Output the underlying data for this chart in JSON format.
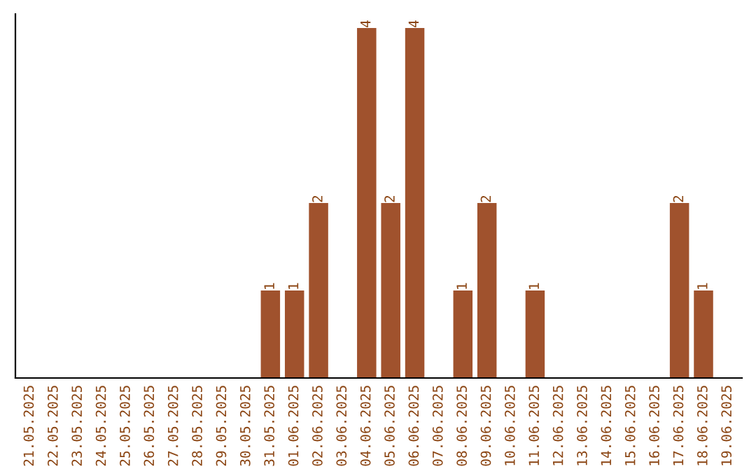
{
  "chart_data": {
    "type": "bar",
    "categories": [
      "21.05.2025",
      "22.05.2025",
      "23.05.2025",
      "24.05.2025",
      "25.05.2025",
      "26.05.2025",
      "27.05.2025",
      "28.05.2025",
      "29.05.2025",
      "30.05.2025",
      "31.05.2025",
      "01.06.2025",
      "02.06.2025",
      "03.06.2025",
      "04.06.2025",
      "05.06.2025",
      "06.06.2025",
      "07.06.2025",
      "08.06.2025",
      "09.06.2025",
      "10.06.2025",
      "11.06.2025",
      "12.06.2025",
      "13.06.2025",
      "14.06.2025",
      "15.06.2025",
      "16.06.2025",
      "17.06.2025",
      "18.06.2025",
      "19.06.2025"
    ],
    "values": [
      0,
      0,
      0,
      0,
      0,
      0,
      0,
      0,
      0,
      0,
      1,
      1,
      2,
      0,
      4,
      2,
      4,
      0,
      1,
      2,
      0,
      1,
      0,
      0,
      0,
      0,
      0,
      2,
      1,
      0
    ],
    "value_labels": [
      null,
      null,
      null,
      null,
      null,
      null,
      null,
      null,
      null,
      null,
      "1",
      "1",
      "2",
      null,
      "4",
      "2",
      "4",
      null,
      "1",
      "2",
      null,
      "1",
      null,
      null,
      null,
      null,
      null,
      "2",
      "1",
      null
    ],
    "color": "#a0522d",
    "tick_labels": "x",
    "grid": false,
    "legend": false
  }
}
